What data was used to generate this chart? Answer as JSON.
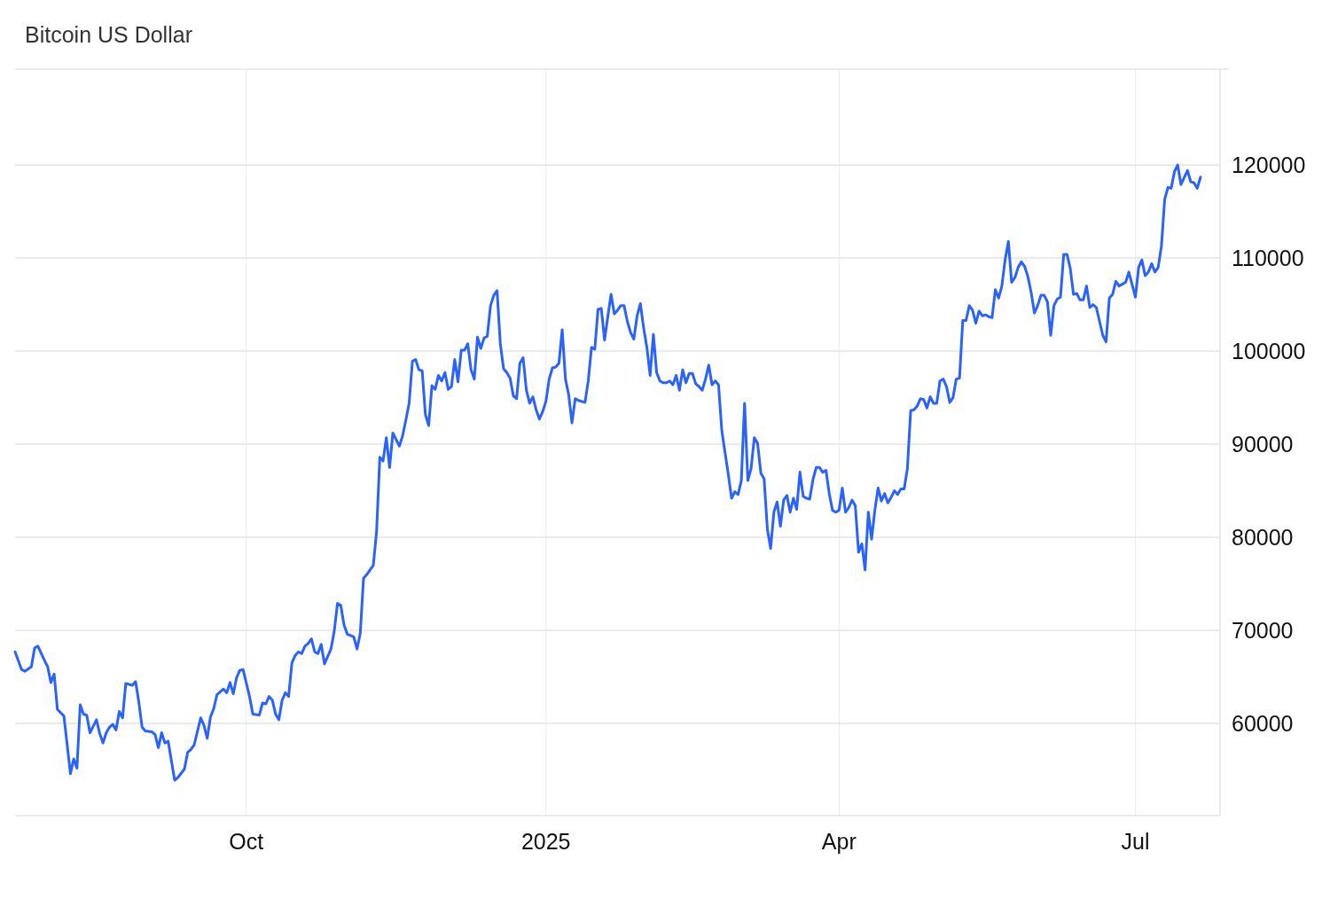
{
  "chart_data": {
    "type": "line",
    "title": "Bitcoin US Dollar",
    "x": [
      "2024-07-22",
      "2024-07-24",
      "2024-07-25",
      "2024-07-27",
      "2024-07-28",
      "2024-07-29",
      "2024-07-31",
      "2024-08-01",
      "2024-08-02",
      "2024-08-03",
      "2024-08-04",
      "2024-08-06",
      "2024-08-07",
      "2024-08-08",
      "2024-08-09",
      "2024-08-10",
      "2024-08-11",
      "2024-08-12",
      "2024-08-13",
      "2024-08-14",
      "2024-08-16",
      "2024-08-17",
      "2024-08-18",
      "2024-08-19",
      "2024-08-20",
      "2024-08-21",
      "2024-08-22",
      "2024-08-23",
      "2024-08-24",
      "2024-08-25",
      "2024-08-27",
      "2024-08-28",
      "2024-08-29",
      "2024-08-30",
      "2024-08-31",
      "2024-09-02",
      "2024-09-03",
      "2024-09-04",
      "2024-09-05",
      "2024-09-06",
      "2024-09-07",
      "2024-09-09",
      "2024-09-10",
      "2024-09-12",
      "2024-09-13",
      "2024-09-14",
      "2024-09-15",
      "2024-09-17",
      "2024-09-18",
      "2024-09-19",
      "2024-09-20",
      "2024-09-21",
      "2024-09-22",
      "2024-09-23",
      "2024-09-24",
      "2024-09-25",
      "2024-09-26",
      "2024-09-27",
      "2024-09-28",
      "2024-09-29",
      "2024-09-30",
      "2024-10-02",
      "2024-10-03",
      "2024-10-05",
      "2024-10-06",
      "2024-10-07",
      "2024-10-08",
      "2024-10-09",
      "2024-10-10",
      "2024-10-11",
      "2024-10-12",
      "2024-10-13",
      "2024-10-14",
      "2024-10-15",
      "2024-10-16",
      "2024-10-17",
      "2024-10-18",
      "2024-10-19",
      "2024-10-20",
      "2024-10-21",
      "2024-10-22",
      "2024-10-23",
      "2024-10-24",
      "2024-10-25",
      "2024-10-26",
      "2024-10-27",
      "2024-10-28",
      "2024-10-29",
      "2024-10-30",
      "2024-10-31",
      "2024-11-01",
      "2024-11-03",
      "2024-11-04",
      "2024-11-05",
      "2024-11-06",
      "2024-11-07",
      "2024-11-09",
      "2024-11-10",
      "2024-11-11",
      "2024-11-12",
      "2024-11-13",
      "2024-11-14",
      "2024-11-15",
      "2024-11-17",
      "2024-11-18",
      "2024-11-19",
      "2024-11-20",
      "2024-11-21",
      "2024-11-22",
      "2024-11-23",
      "2024-11-24",
      "2024-11-25",
      "2024-11-26",
      "2024-11-27",
      "2024-11-28",
      "2024-11-29",
      "2024-11-30",
      "2024-12-01",
      "2024-12-02",
      "2024-12-03",
      "2024-12-04",
      "2024-12-05",
      "2024-12-06",
      "2024-12-07",
      "2024-12-08",
      "2024-12-09",
      "2024-12-10",
      "2024-12-11",
      "2024-12-12",
      "2024-12-13",
      "2024-12-14",
      "2024-12-15",
      "2024-12-16",
      "2024-12-17",
      "2024-12-18",
      "2024-12-19",
      "2024-12-20",
      "2024-12-21",
      "2024-12-22",
      "2024-12-23",
      "2024-12-24",
      "2024-12-25",
      "2024-12-26",
      "2024-12-27",
      "2024-12-28",
      "2024-12-29",
      "2024-12-30",
      "2024-12-31",
      "2025-01-01",
      "2025-01-02",
      "2025-01-03",
      "2025-01-04",
      "2025-01-05",
      "2025-01-06",
      "2025-01-07",
      "2025-01-08",
      "2025-01-09",
      "2025-01-10",
      "2025-01-11",
      "2025-01-13",
      "2025-01-14",
      "2025-01-15",
      "2025-01-16",
      "2025-01-17",
      "2025-01-18",
      "2025-01-19",
      "2025-01-20",
      "2025-01-21",
      "2025-01-22",
      "2025-01-23",
      "2025-01-24",
      "2025-01-25",
      "2025-01-26",
      "2025-01-27",
      "2025-01-28",
      "2025-01-29",
      "2025-01-30",
      "2025-01-31",
      "2025-02-01",
      "2025-02-02",
      "2025-02-03",
      "2025-02-04",
      "2025-02-05",
      "2025-02-06",
      "2025-02-07",
      "2025-02-08",
      "2025-02-09",
      "2025-02-10",
      "2025-02-11",
      "2025-02-12",
      "2025-02-13",
      "2025-02-14",
      "2025-02-15",
      "2025-02-16",
      "2025-02-17",
      "2025-02-18",
      "2025-02-19",
      "2025-02-20",
      "2025-02-21",
      "2025-02-22",
      "2025-02-23",
      "2025-02-24",
      "2025-02-25",
      "2025-02-26",
      "2025-02-27",
      "2025-02-28",
      "2025-03-01",
      "2025-03-02",
      "2025-03-03",
      "2025-03-04",
      "2025-03-05",
      "2025-03-06",
      "2025-03-07",
      "2025-03-08",
      "2025-03-09",
      "2025-03-10",
      "2025-03-11",
      "2025-03-12",
      "2025-03-13",
      "2025-03-14",
      "2025-03-15",
      "2025-03-16",
      "2025-03-17",
      "2025-03-18",
      "2025-03-19",
      "2025-03-20",
      "2025-03-21",
      "2025-03-22",
      "2025-03-23",
      "2025-03-24",
      "2025-03-25",
      "2025-03-26",
      "2025-03-27",
      "2025-03-28",
      "2025-03-29",
      "2025-03-30",
      "2025-03-31",
      "2025-04-01",
      "2025-04-02",
      "2025-04-03",
      "2025-04-04",
      "2025-04-05",
      "2025-04-06",
      "2025-04-07",
      "2025-04-08",
      "2025-04-09",
      "2025-04-10",
      "2025-04-11",
      "2025-04-12",
      "2025-04-13",
      "2025-04-14",
      "2025-04-15",
      "2025-04-16",
      "2025-04-17",
      "2025-04-18",
      "2025-04-19",
      "2025-04-20",
      "2025-04-21",
      "2025-04-22",
      "2025-04-23",
      "2025-04-24",
      "2025-04-25",
      "2025-04-26",
      "2025-04-27",
      "2025-04-28",
      "2025-04-29",
      "2025-04-30",
      "2025-05-01",
      "2025-05-02",
      "2025-05-03",
      "2025-05-04",
      "2025-05-05",
      "2025-05-06",
      "2025-05-07",
      "2025-05-08",
      "2025-05-09",
      "2025-05-10",
      "2025-05-11",
      "2025-05-12",
      "2025-05-13",
      "2025-05-14",
      "2025-05-15",
      "2025-05-16",
      "2025-05-17",
      "2025-05-18",
      "2025-05-19",
      "2025-05-20",
      "2025-05-21",
      "2025-05-22",
      "2025-05-23",
      "2025-05-24",
      "2025-05-25",
      "2025-05-26",
      "2025-05-27",
      "2025-05-28",
      "2025-05-29",
      "2025-05-30",
      "2025-05-31",
      "2025-06-01",
      "2025-06-02",
      "2025-06-03",
      "2025-06-04",
      "2025-06-05",
      "2025-06-06",
      "2025-06-07",
      "2025-06-08",
      "2025-06-09",
      "2025-06-10",
      "2025-06-11",
      "2025-06-12",
      "2025-06-13",
      "2025-06-14",
      "2025-06-15",
      "2025-06-16",
      "2025-06-17",
      "2025-06-18",
      "2025-06-19",
      "2025-06-21",
      "2025-06-22",
      "2025-06-23",
      "2025-06-24",
      "2025-06-25",
      "2025-06-26",
      "2025-06-28",
      "2025-06-29",
      "2025-07-01",
      "2025-07-02",
      "2025-07-03",
      "2025-07-04",
      "2025-07-05",
      "2025-07-06",
      "2025-07-07",
      "2025-07-08",
      "2025-07-09",
      "2025-07-10",
      "2025-07-11",
      "2025-07-12",
      "2025-07-13",
      "2025-07-14",
      "2025-07-15",
      "2025-07-17",
      "2025-07-18",
      "2025-07-19",
      "2025-07-20",
      "2025-07-21"
    ],
    "series": [
      {
        "color": "#2962ff",
        "values": [
          67700,
          65800,
          65600,
          66100,
          68100,
          68300,
          66800,
          66100,
          64400,
          65300,
          61500,
          60800,
          57700,
          54600,
          56200,
          55200,
          62000,
          61000,
          60900,
          59000,
          60400,
          58900,
          57900,
          59000,
          59600,
          59900,
          59300,
          61300,
          60600,
          64300,
          64100,
          64500,
          62300,
          59600,
          59200,
          59100,
          58800,
          57400,
          59000,
          57900,
          58100,
          53900,
          54200,
          55100,
          56900,
          57200,
          57700,
          60600,
          59800,
          58400,
          60700,
          61600,
          63100,
          63400,
          63700,
          63300,
          64400,
          63200,
          64900,
          65700,
          65800,
          62900,
          61000,
          60900,
          62200,
          62100,
          62900,
          62500,
          61000,
          60400,
          62500,
          63300,
          62900,
          66500,
          67300,
          67700,
          67500,
          68300,
          68600,
          69100,
          67700,
          67500,
          68500,
          66400,
          67200,
          68000,
          69900,
          72900,
          72700,
          70600,
          69600,
          69300,
          68000,
          69700,
          75600,
          76000,
          77000,
          80600,
          88600,
          88200,
          90700,
          87500,
          91200,
          89800,
          90900,
          92600,
          94400,
          98900,
          99100,
          98000,
          97900,
          93200,
          92000,
          96300,
          95900,
          97400,
          96800,
          97700,
          95900,
          96200,
          99100,
          96700,
          100100,
          100100,
          100800,
          98000,
          97000,
          101500,
          100300,
          101400,
          101600,
          104900,
          106000,
          106500,
          100800,
          98100,
          97700,
          97100,
          95200,
          94900,
          98700,
          99300,
          95800,
          94400,
          95100,
          93700,
          92700,
          93500,
          94600,
          97000,
          98200,
          98300,
          98700,
          102300,
          97000,
          95300,
          92300,
          94900,
          94700,
          94500,
          96800,
          100400,
          100200,
          104500,
          104600,
          101200,
          103700,
          106100,
          104000,
          104400,
          104900,
          104900,
          103200,
          102000,
          101300,
          103800,
          105100,
          102500,
          100400,
          97400,
          101800,
          97700,
          96800,
          96600,
          96600,
          96800,
          96400,
          97400,
          95800,
          98000,
          96600,
          97600,
          97600,
          96500,
          96200,
          95800,
          97000,
          98500,
          96400,
          96800,
          96400,
          91500,
          89100,
          86800,
          84200,
          84900,
          84600,
          86100,
          94400,
          86100,
          87400,
          90700,
          90100,
          86900,
          86300,
          80900,
          78800,
          82700,
          83800,
          81200,
          84000,
          84500,
          82700,
          84200,
          83000,
          87000,
          84400,
          84200,
          84100,
          86200,
          87500,
          87500,
          87000,
          87200,
          84700,
          82900,
          82700,
          82900,
          85300,
          82700,
          83200,
          84000,
          83400,
          78400,
          79300,
          76500,
          82700,
          79800,
          82900,
          85300,
          83900,
          84700,
          83700,
          84300,
          85000,
          84600,
          85200,
          85200,
          87400,
          93600,
          93700,
          94100,
          94900,
          94800,
          93900,
          95100,
          94400,
          94400,
          96800,
          97000,
          96200,
          94500,
          95000,
          97000,
          97100,
          103300,
          103300,
          104900,
          104400,
          103000,
          104300,
          103800,
          103900,
          103700,
          103600,
          106600,
          105700,
          107000,
          109800,
          111800,
          107400,
          107900,
          109000,
          109600,
          109100,
          108000,
          106300,
          104100,
          104900,
          106000,
          106000,
          105300,
          101700,
          104900,
          105600,
          105800,
          110400,
          110400,
          108900,
          106100,
          106200,
          105500,
          105500,
          107000,
          104700,
          105000,
          104700,
          101700,
          101000,
          105700,
          106100,
          107500,
          107000,
          107400,
          108500,
          105800,
          109000,
          109800,
          108100,
          108500,
          109400,
          108500,
          109000,
          111300,
          116300,
          117600,
          117500,
          119300,
          120000,
          117900,
          119400,
          118200,
          118100,
          117500,
          118700
        ]
      }
    ],
    "xlim": [
      "2024-07-22",
      "2025-07-27"
    ],
    "xticks": [
      {
        "value": "2024-10-01",
        "label": "Oct"
      },
      {
        "value": "2025-01-01",
        "label": "2025"
      },
      {
        "value": "2025-04-01",
        "label": "Apr"
      },
      {
        "value": "2025-07-01",
        "label": "Jul"
      }
    ],
    "ylim": [
      50100,
      130300
    ],
    "yticks": [
      60000,
      70000,
      80000,
      90000,
      100000,
      110000,
      120000
    ],
    "grid": true
  }
}
